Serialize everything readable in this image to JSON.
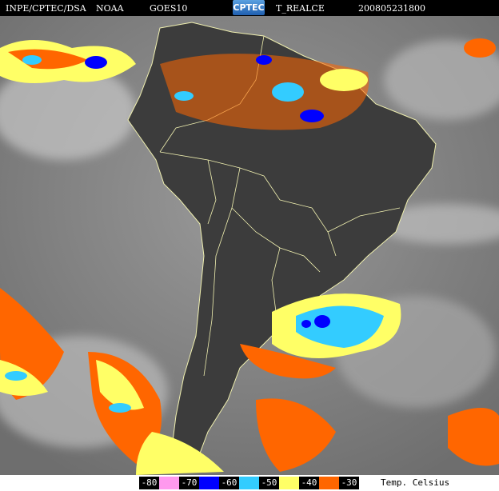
{
  "header": {
    "source": "INPE/CPTEC/DSA",
    "agency": "NOAA",
    "satellite": "GOES10",
    "logo_text": "CPTEC",
    "product": "T_REALCE",
    "datetime": "200805231800"
  },
  "legend": {
    "unit": "Temp. Celsius",
    "items": [
      {
        "label": "-80",
        "color": "#ff99ee"
      },
      {
        "label": "-70",
        "color": "#0000ff"
      },
      {
        "label": "-60",
        "color": "#33ccff"
      },
      {
        "label": "-50",
        "color": "#ffff66"
      },
      {
        "label": "-40",
        "color": "#ff6600"
      },
      {
        "label": "-30",
        "color": null
      }
    ]
  },
  "colors": {
    "border": "#f0f0b0",
    "ocean": "#8a8a8a",
    "land": "#3a3a3a"
  }
}
